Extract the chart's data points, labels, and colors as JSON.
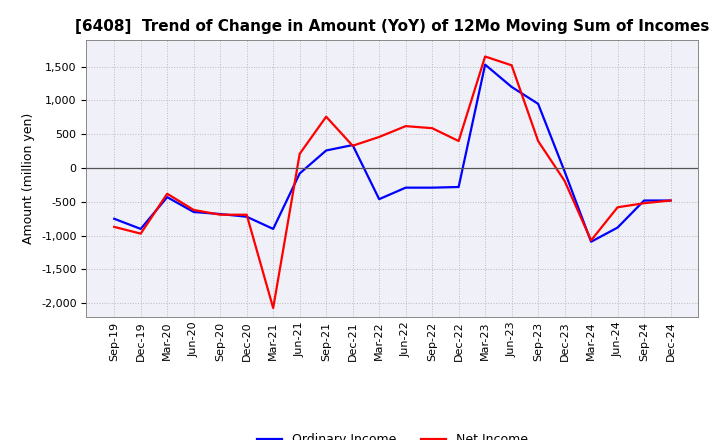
{
  "title": "[6408]  Trend of Change in Amount (YoY) of 12Mo Moving Sum of Incomes",
  "ylabel": "Amount (million yen)",
  "x_labels": [
    "Sep-19",
    "Dec-19",
    "Mar-20",
    "Jun-20",
    "Sep-20",
    "Dec-20",
    "Mar-21",
    "Jun-21",
    "Sep-21",
    "Dec-21",
    "Mar-22",
    "Jun-22",
    "Sep-22",
    "Dec-22",
    "Mar-23",
    "Jun-23",
    "Sep-23",
    "Dec-23",
    "Mar-24",
    "Jun-24",
    "Sep-24",
    "Dec-24"
  ],
  "ordinary_income": [
    -750,
    -900,
    -430,
    -650,
    -680,
    -720,
    -900,
    -80,
    260,
    340,
    -460,
    -290,
    -290,
    -280,
    1530,
    1200,
    950,
    -50,
    -1090,
    -880,
    -480,
    -480
  ],
  "net_income": [
    -870,
    -970,
    -380,
    -620,
    -690,
    -690,
    -2070,
    210,
    760,
    330,
    460,
    620,
    590,
    400,
    1650,
    1520,
    400,
    -190,
    -1070,
    -580,
    -520,
    -480
  ],
  "ordinary_color": "#0000ff",
  "net_color": "#ff0000",
  "ylim": [
    -2200,
    1900
  ],
  "yticks": [
    -2000,
    -1500,
    -1000,
    -500,
    0,
    500,
    1000,
    1500
  ],
  "grid_color": "#bbbbbb",
  "background_color": "#f0f0f8",
  "line_width": 1.6,
  "title_fontsize": 11,
  "ylabel_fontsize": 9,
  "tick_fontsize": 8,
  "legend_fontsize": 9
}
